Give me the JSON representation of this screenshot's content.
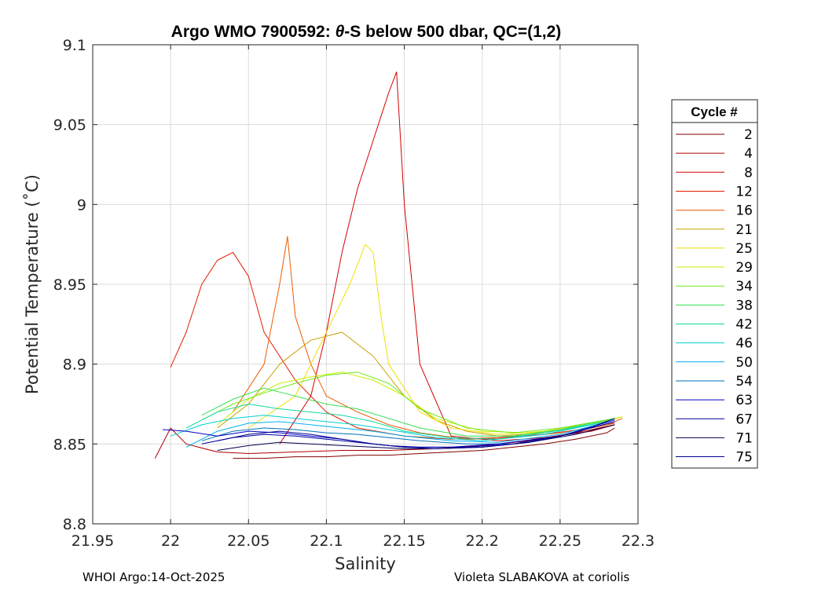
{
  "chart_data": {
    "type": "line",
    "title_parts": {
      "prefix": "Argo WMO 7900592: ",
      "theta": "θ",
      "suffix": "-S below 500 dbar,  QC=(1,2)"
    },
    "xlabel": "Salinity",
    "ylabel": "Potential Temperature (˚C)",
    "xlim": [
      21.95,
      22.3
    ],
    "ylim": [
      8.8,
      9.1
    ],
    "xticks": [
      21.95,
      22,
      22.05,
      22.1,
      22.15,
      22.2,
      22.25,
      22.3
    ],
    "xtick_labels": [
      "21.95",
      "22",
      "22.05",
      "22.1",
      "22.15",
      "22.2",
      "22.25",
      "22.3"
    ],
    "yticks": [
      8.8,
      8.85,
      8.9,
      8.95,
      9,
      9.05,
      9.1
    ],
    "ytick_labels": [
      "8.8",
      "8.85",
      "8.9",
      "8.95",
      "9",
      "9.05",
      "9.1"
    ],
    "grid": true,
    "legend_title": "Cycle #",
    "legend_position": "outside-right",
    "series": [
      {
        "name": "2",
        "color": "#800000",
        "x": [
          22.04,
          22.06,
          22.08,
          22.1,
          22.12,
          22.14,
          22.16,
          22.18,
          22.2,
          22.22,
          22.24,
          22.26,
          22.28,
          22.285
        ],
        "y": [
          8.841,
          8.841,
          8.842,
          8.842,
          8.843,
          8.843,
          8.844,
          8.845,
          8.846,
          8.848,
          8.85,
          8.853,
          8.857,
          8.86
        ]
      },
      {
        "name": "4",
        "color": "#b00000",
        "x": [
          21.99,
          22.0,
          22.01,
          22.03,
          22.05,
          22.08,
          22.11,
          22.14,
          22.17,
          22.2,
          22.23,
          22.26,
          22.285
        ],
        "y": [
          8.841,
          8.86,
          8.85,
          8.845,
          8.844,
          8.845,
          8.846,
          8.846,
          8.847,
          8.849,
          8.852,
          8.857,
          8.862
        ]
      },
      {
        "name": "8",
        "color": "#d40000",
        "x": [
          22.07,
          22.09,
          22.1,
          22.11,
          22.12,
          22.13,
          22.14,
          22.145,
          22.15,
          22.16,
          22.18,
          22.21,
          22.24,
          22.27,
          22.285
        ],
        "y": [
          8.85,
          8.88,
          8.92,
          8.97,
          9.01,
          9.04,
          9.07,
          9.083,
          9.0,
          8.9,
          8.855,
          8.852,
          8.854,
          8.858,
          8.862
        ]
      },
      {
        "name": "12",
        "color": "#e41c00",
        "x": [
          22.0,
          22.01,
          22.02,
          22.03,
          22.04,
          22.05,
          22.06,
          22.08,
          22.1,
          22.12,
          22.15,
          22.18,
          22.21,
          22.24,
          22.27,
          22.285
        ],
        "y": [
          8.898,
          8.92,
          8.95,
          8.965,
          8.97,
          8.955,
          8.92,
          8.89,
          8.87,
          8.86,
          8.855,
          8.853,
          8.854,
          8.856,
          8.86,
          8.863
        ]
      },
      {
        "name": "16",
        "color": "#f05a00",
        "x": [
          22.04,
          22.06,
          22.07,
          22.075,
          22.08,
          22.09,
          22.1,
          22.12,
          22.14,
          22.16,
          22.19,
          22.22,
          22.25,
          22.28,
          22.29
        ],
        "y": [
          8.87,
          8.9,
          8.95,
          8.98,
          8.93,
          8.9,
          8.88,
          8.87,
          8.862,
          8.857,
          8.853,
          8.854,
          8.857,
          8.862,
          8.866
        ]
      },
      {
        "name": "21",
        "color": "#c8a000",
        "x": [
          22.03,
          22.05,
          22.07,
          22.09,
          22.11,
          22.13,
          22.15,
          22.17,
          22.19,
          22.21,
          22.24,
          22.27,
          22.29
        ],
        "y": [
          8.86,
          8.875,
          8.9,
          8.915,
          8.92,
          8.905,
          8.88,
          8.865,
          8.858,
          8.855,
          8.857,
          8.862,
          8.867
        ]
      },
      {
        "name": "25",
        "color": "#f0e000",
        "x": [
          22.05,
          22.08,
          22.1,
          22.115,
          22.125,
          22.13,
          22.135,
          22.14,
          22.16,
          22.18,
          22.21,
          22.24,
          22.27,
          22.29
        ],
        "y": [
          8.86,
          8.88,
          8.92,
          8.95,
          8.975,
          8.97,
          8.93,
          8.9,
          8.87,
          8.86,
          8.856,
          8.858,
          8.863,
          8.867
        ]
      },
      {
        "name": "29",
        "color": "#c8f000",
        "x": [
          22.03,
          22.05,
          22.07,
          22.09,
          22.11,
          22.13,
          22.15,
          22.17,
          22.2,
          22.23,
          22.26,
          22.29
        ],
        "y": [
          8.862,
          8.878,
          8.888,
          8.892,
          8.895,
          8.89,
          8.88,
          8.866,
          8.858,
          8.857,
          8.86,
          8.867
        ]
      },
      {
        "name": "34",
        "color": "#70ea20",
        "x": [
          22.02,
          22.04,
          22.06,
          22.08,
          22.1,
          22.12,
          22.14,
          22.16,
          22.19,
          22.22,
          22.25,
          22.285
        ],
        "y": [
          8.865,
          8.875,
          8.882,
          8.888,
          8.893,
          8.895,
          8.888,
          8.872,
          8.86,
          8.857,
          8.86,
          8.866
        ]
      },
      {
        "name": "38",
        "color": "#30e050",
        "x": [
          22.02,
          22.04,
          22.06,
          22.08,
          22.1,
          22.12,
          22.14,
          22.16,
          22.19,
          22.22,
          22.25,
          22.285
        ],
        "y": [
          8.868,
          8.878,
          8.885,
          8.88,
          8.875,
          8.872,
          8.866,
          8.86,
          8.855,
          8.855,
          8.859,
          8.866
        ]
      },
      {
        "name": "42",
        "color": "#10d8a0",
        "x": [
          22.01,
          22.03,
          22.05,
          22.07,
          22.09,
          22.11,
          22.13,
          22.15,
          22.18,
          22.21,
          22.24,
          22.28
        ],
        "y": [
          8.86,
          8.87,
          8.875,
          8.872,
          8.87,
          8.868,
          8.864,
          8.858,
          8.854,
          8.853,
          8.857,
          8.864
        ]
      },
      {
        "name": "46",
        "color": "#00d0d0",
        "x": [
          22.0,
          22.02,
          22.04,
          22.06,
          22.08,
          22.1,
          22.12,
          22.14,
          22.17,
          22.2,
          22.24,
          22.28
        ],
        "y": [
          8.855,
          8.862,
          8.866,
          8.868,
          8.866,
          8.864,
          8.862,
          8.859,
          8.854,
          8.852,
          8.856,
          8.864
        ]
      },
      {
        "name": "50",
        "color": "#00b0f0",
        "x": [
          22.01,
          22.03,
          22.05,
          22.07,
          22.09,
          22.11,
          22.13,
          22.15,
          22.18,
          22.21,
          22.25,
          22.285
        ],
        "y": [
          8.848,
          8.858,
          8.863,
          8.864,
          8.862,
          8.86,
          8.858,
          8.855,
          8.852,
          8.851,
          8.856,
          8.865
        ]
      },
      {
        "name": "54",
        "color": "#0070b8",
        "x": [
          22.02,
          22.04,
          22.06,
          22.08,
          22.1,
          22.12,
          22.14,
          22.16,
          22.19,
          22.22,
          22.25,
          22.285
        ],
        "y": [
          8.852,
          8.858,
          8.86,
          8.859,
          8.857,
          8.856,
          8.854,
          8.852,
          8.85,
          8.85,
          8.855,
          8.864
        ]
      },
      {
        "name": "63",
        "color": "#0000c8",
        "x": [
          21.995,
          22.01,
          22.03,
          22.05,
          22.07,
          22.09,
          22.11,
          22.13,
          22.15,
          22.18,
          22.21,
          22.25,
          22.285
        ],
        "y": [
          8.859,
          8.858,
          8.855,
          8.858,
          8.857,
          8.855,
          8.853,
          8.85,
          8.848,
          8.848,
          8.85,
          8.855,
          8.865
        ]
      },
      {
        "name": "67",
        "color": "#0000a0",
        "x": [
          22.02,
          22.04,
          22.06,
          22.08,
          22.1,
          22.12,
          22.14,
          22.16,
          22.19,
          22.22,
          22.25,
          22.285
        ],
        "y": [
          8.85,
          8.854,
          8.856,
          8.855,
          8.853,
          8.851,
          8.849,
          8.848,
          8.848,
          8.85,
          8.855,
          8.864
        ]
      },
      {
        "name": "71",
        "color": "#000050",
        "x": [
          22.03,
          22.05,
          22.07,
          22.09,
          22.11,
          22.13,
          22.15,
          22.17,
          22.2,
          22.23,
          22.26,
          22.285
        ],
        "y": [
          8.846,
          8.849,
          8.851,
          8.85,
          8.849,
          8.848,
          8.847,
          8.847,
          8.848,
          8.851,
          8.856,
          8.862
        ]
      },
      {
        "name": "75",
        "color": "#000090",
        "x": [
          22.03,
          22.05,
          22.07,
          22.09,
          22.11,
          22.13,
          22.15,
          22.17,
          22.2,
          22.23,
          22.26,
          22.285
        ],
        "y": [
          8.852,
          8.856,
          8.858,
          8.856,
          8.853,
          8.85,
          8.848,
          8.847,
          8.848,
          8.851,
          8.857,
          8.866
        ]
      }
    ]
  },
  "footer": {
    "left": "WHOI Argo:14-Oct-2025",
    "right": "Violeta SLABAKOVA at coriolis"
  }
}
